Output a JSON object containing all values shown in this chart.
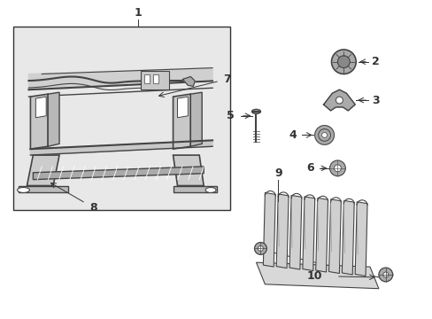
{
  "bg_color": "#ffffff",
  "line_color": "#333333",
  "gray_fill": "#e8e8e8",
  "part_gray": "#aaaaaa",
  "dark": "#444444",
  "light": "#cccccc"
}
